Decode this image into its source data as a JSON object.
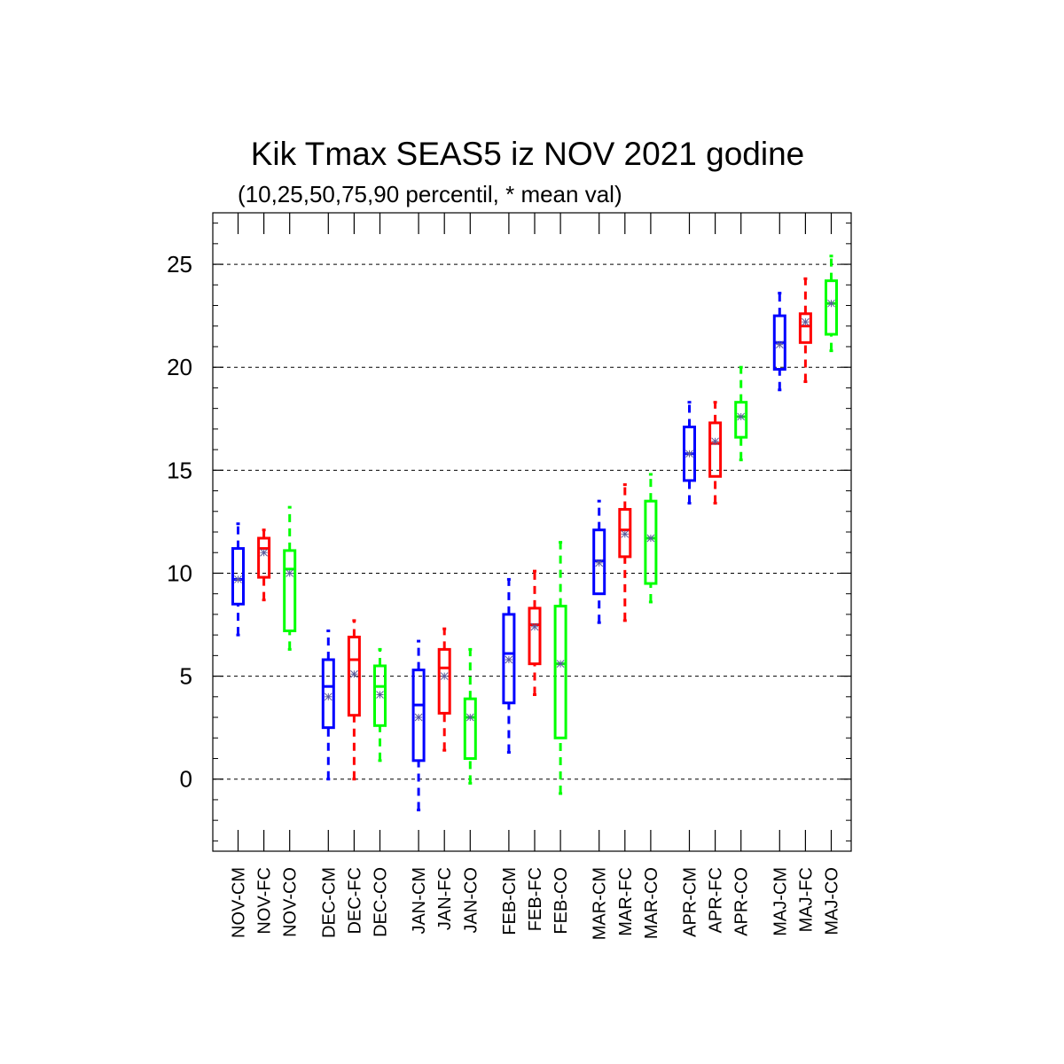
{
  "chart_data": {
    "type": "boxplot",
    "title": "Kik Tmax SEAS5 iz NOV 2021 godine",
    "subtitle": "(10,25,50,75,90 percentil, * mean val)",
    "xlabel": "",
    "ylabel": "",
    "ylim": [
      -3.5,
      27.5
    ],
    "yticks": [
      0,
      5,
      10,
      15,
      20,
      25
    ],
    "grid": "horizontal dashed at major ticks",
    "colors": {
      "CM": "#0000ff",
      "FC": "#ff0000",
      "CO": "#00ff00",
      "mean_marker": "#5a5a9a"
    },
    "groups": [
      "NOV",
      "DEC",
      "JAN",
      "FEB",
      "MAR",
      "APR",
      "MAJ"
    ],
    "boxes": [
      {
        "label": "NOV-CM",
        "kind": "CM",
        "p10": 7.0,
        "p25": 8.5,
        "p50": 9.7,
        "p75": 11.2,
        "p90": 12.4,
        "mean": 9.7
      },
      {
        "label": "NOV-FC",
        "kind": "FC",
        "p10": 8.7,
        "p25": 9.8,
        "p50": 11.2,
        "p75": 11.7,
        "p90": 12.1,
        "mean": 11.0
      },
      {
        "label": "NOV-CO",
        "kind": "CO",
        "p10": 6.3,
        "p25": 7.2,
        "p50": 10.2,
        "p75": 11.1,
        "p90": 13.2,
        "mean": 10.0
      },
      {
        "label": "DEC-CM",
        "kind": "CM",
        "p10": 0.0,
        "p25": 2.5,
        "p50": 4.5,
        "p75": 5.8,
        "p90": 7.2,
        "mean": 4.0
      },
      {
        "label": "DEC-FC",
        "kind": "FC",
        "p10": 0.0,
        "p25": 3.1,
        "p50": 5.8,
        "p75": 6.9,
        "p90": 7.7,
        "mean": 5.1
      },
      {
        "label": "DEC-CO",
        "kind": "CO",
        "p10": 0.9,
        "p25": 2.6,
        "p50": 4.5,
        "p75": 5.5,
        "p90": 6.3,
        "mean": 4.1
      },
      {
        "label": "JAN-CM",
        "kind": "CM",
        "p10": -1.5,
        "p25": 0.9,
        "p50": 3.6,
        "p75": 5.3,
        "p90": 6.7,
        "mean": 3.0
      },
      {
        "label": "JAN-FC",
        "kind": "FC",
        "p10": 1.4,
        "p25": 3.2,
        "p50": 5.4,
        "p75": 6.3,
        "p90": 7.3,
        "mean": 5.0
      },
      {
        "label": "JAN-CO",
        "kind": "CO",
        "p10": -0.2,
        "p25": 1.0,
        "p50": 3.0,
        "p75": 3.9,
        "p90": 6.3,
        "mean": 3.0
      },
      {
        "label": "FEB-CM",
        "kind": "CM",
        "p10": 1.3,
        "p25": 3.7,
        "p50": 6.1,
        "p75": 8.0,
        "p90": 9.7,
        "mean": 5.8
      },
      {
        "label": "FEB-FC",
        "kind": "FC",
        "p10": 4.1,
        "p25": 5.6,
        "p50": 7.5,
        "p75": 8.3,
        "p90": 10.1,
        "mean": 7.4
      },
      {
        "label": "FEB-CO",
        "kind": "CO",
        "p10": -0.7,
        "p25": 2.0,
        "p50": 5.6,
        "p75": 8.4,
        "p90": 11.5,
        "mean": 5.6
      },
      {
        "label": "MAR-CM",
        "kind": "CM",
        "p10": 7.6,
        "p25": 9.0,
        "p50": 10.6,
        "p75": 12.1,
        "p90": 13.5,
        "mean": 10.5
      },
      {
        "label": "MAR-FC",
        "kind": "FC",
        "p10": 7.7,
        "p25": 10.8,
        "p50": 12.1,
        "p75": 13.1,
        "p90": 14.3,
        "mean": 11.9
      },
      {
        "label": "MAR-CO",
        "kind": "CO",
        "p10": 8.6,
        "p25": 9.5,
        "p50": 11.7,
        "p75": 13.5,
        "p90": 14.8,
        "mean": 11.7
      },
      {
        "label": "APR-CM",
        "kind": "CM",
        "p10": 13.4,
        "p25": 14.5,
        "p50": 15.8,
        "p75": 17.1,
        "p90": 18.3,
        "mean": 15.8
      },
      {
        "label": "APR-FC",
        "kind": "FC",
        "p10": 13.4,
        "p25": 14.7,
        "p50": 16.3,
        "p75": 17.3,
        "p90": 18.3,
        "mean": 16.4
      },
      {
        "label": "APR-CO",
        "kind": "CO",
        "p10": 15.5,
        "p25": 16.6,
        "p50": 17.6,
        "p75": 18.3,
        "p90": 20.0,
        "mean": 17.6
      },
      {
        "label": "MAJ-CM",
        "kind": "CM",
        "p10": 18.9,
        "p25": 19.9,
        "p50": 21.2,
        "p75": 22.5,
        "p90": 23.6,
        "mean": 21.1
      },
      {
        "label": "MAJ-FC",
        "kind": "FC",
        "p10": 19.3,
        "p25": 21.2,
        "p50": 22.0,
        "p75": 22.6,
        "p90": 24.3,
        "mean": 22.2
      },
      {
        "label": "MAJ-CO",
        "kind": "CO",
        "p10": 20.8,
        "p25": 21.6,
        "p50": 23.1,
        "p75": 24.2,
        "p90": 25.4,
        "mean": 23.1
      }
    ]
  }
}
